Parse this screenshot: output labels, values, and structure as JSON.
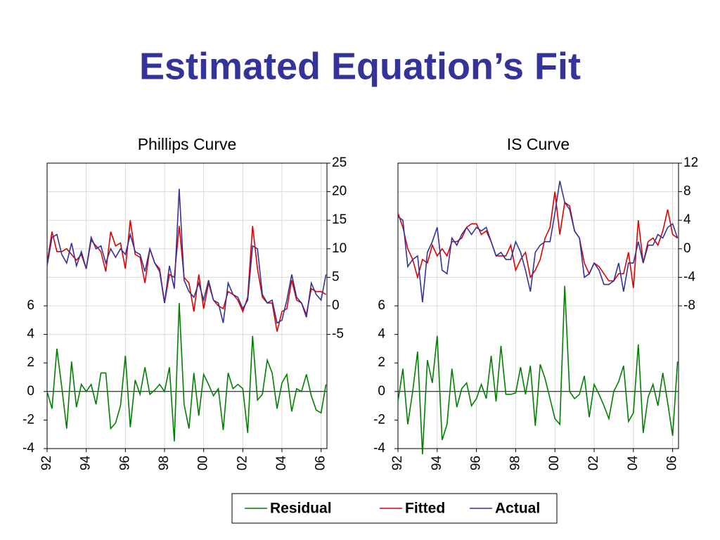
{
  "title": "Estimated Equation’s Fit",
  "chart_data": [
    {
      "type": "line",
      "title": "Phillips Curve",
      "x": [
        1992,
        1992.25,
        1992.5,
        1992.75,
        1993,
        1993.25,
        1993.5,
        1993.75,
        1994,
        1994.25,
        1994.5,
        1994.75,
        1995,
        1995.25,
        1995.5,
        1995.75,
        1996,
        1996.25,
        1996.5,
        1996.75,
        1997,
        1997.25,
        1997.5,
        1997.75,
        1998,
        1998.25,
        1998.5,
        1998.75,
        1999,
        1999.25,
        1999.5,
        1999.75,
        2000,
        2000.25,
        2000.5,
        2000.75,
        2001,
        2001.25,
        2001.5,
        2001.75,
        2002,
        2002.25,
        2002.5,
        2002.75,
        2003,
        2003.25,
        2003.5,
        2003.75,
        2004,
        2004.25,
        2004.5,
        2004.75,
        2005,
        2005.25,
        2005.5,
        2005.75,
        2006,
        2006.25
      ],
      "xlim": [
        1992,
        2006.3
      ],
      "xticks": [
        {
          "value": 1992,
          "label": "92"
        },
        {
          "value": 1994,
          "label": "94"
        },
        {
          "value": 1996,
          "label": "96"
        },
        {
          "value": 1998,
          "label": "98"
        },
        {
          "value": 2000,
          "label": "00"
        },
        {
          "value": 2002,
          "label": "02"
        },
        {
          "value": 2004,
          "label": "04"
        },
        {
          "value": 2006,
          "label": "06"
        }
      ],
      "ylim": [
        -4,
        16
      ],
      "yticks": [
        -4,
        -2,
        0,
        2,
        4,
        6
      ],
      "y2lim": [
        -25,
        25
      ],
      "y2ticks": [
        -5,
        0,
        5,
        10,
        15,
        20,
        25
      ],
      "series": [
        {
          "name": "Residual",
          "color": "#008000",
          "axis": "y",
          "values": [
            0,
            -1.2,
            3,
            0.3,
            -2.6,
            2.1,
            -1.1,
            0.5,
            0,
            0.5,
            -0.9,
            1.3,
            1.3,
            -2.6,
            -2.2,
            -1,
            2.5,
            -2.5,
            0.8,
            -0.2,
            1.7,
            -0.2,
            0.1,
            0.5,
            0,
            1.7,
            -3.5,
            6.2,
            -0.9,
            -2.6,
            1.3,
            -1.7,
            1.2,
            0.5,
            -0.3,
            0.2,
            -2.7,
            1.3,
            0.2,
            0.5,
            0.2,
            -2.9,
            3.9,
            -0.6,
            -0.2,
            2.2,
            1.3,
            -1.2,
            0.6,
            1.2,
            -1.4,
            0.2,
            0,
            1.2,
            -0.3,
            -1.3,
            -1.5,
            0.5
          ]
        },
        {
          "name": "Fitted",
          "color": "#e00000",
          "axis": "y2",
          "values": [
            7.5,
            13,
            9.5,
            9.5,
            10,
            9,
            8,
            9,
            6.5,
            11.5,
            10.5,
            9.5,
            6,
            13,
            10.5,
            11,
            6.5,
            15,
            9,
            8.5,
            4,
            10,
            7.5,
            6.5,
            0.5,
            5.5,
            5,
            14,
            5,
            4,
            -1,
            5.5,
            -0.5,
            4,
            1,
            0,
            -0.5,
            2.5,
            2,
            1,
            -1,
            1.5,
            14,
            6.5,
            1.5,
            0.5,
            0.5,
            -4.5,
            -1,
            -0.5,
            4.5,
            1,
            0.5,
            -1.5,
            3,
            2.5,
            2.5,
            2
          ]
        },
        {
          "name": "Actual",
          "color": "#333399",
          "axis": "y2",
          "values": [
            7,
            12,
            12.5,
            9,
            7.5,
            11,
            7,
            9.5,
            6.5,
            12,
            10,
            10.5,
            7.5,
            10,
            8.5,
            10,
            9,
            12.5,
            9.5,
            9,
            6,
            10,
            7.5,
            6,
            0.5,
            7,
            3,
            20.5,
            4.5,
            2.5,
            1.5,
            4,
            1,
            4.5,
            1,
            0.5,
            -3,
            4,
            2,
            1.5,
            -0.5,
            1,
            10.5,
            10,
            2,
            0.5,
            1,
            -3,
            -2.5,
            1,
            5.5,
            1.5,
            0.5,
            -2,
            4,
            2,
            1,
            5.5
          ]
        }
      ]
    },
    {
      "type": "line",
      "title": "IS Curve",
      "x": [
        1992,
        1992.25,
        1992.5,
        1992.75,
        1993,
        1993.25,
        1993.5,
        1993.75,
        1994,
        1994.25,
        1994.5,
        1994.75,
        1995,
        1995.25,
        1995.5,
        1995.75,
        1996,
        1996.25,
        1996.5,
        1996.75,
        1997,
        1997.25,
        1997.5,
        1997.75,
        1998,
        1998.25,
        1998.5,
        1998.75,
        1999,
        1999.25,
        1999.5,
        1999.75,
        2000,
        2000.25,
        2000.5,
        2000.75,
        2001,
        2001.25,
        2001.5,
        2001.75,
        2002,
        2002.25,
        2002.5,
        2002.75,
        2003,
        2003.25,
        2003.5,
        2003.75,
        2004,
        2004.25,
        2004.5,
        2004.75,
        2005,
        2005.25,
        2005.5,
        2005.75,
        2006,
        2006.25
      ],
      "xlim": [
        1992,
        2006.3
      ],
      "xticks": [
        {
          "value": 1992,
          "label": "92"
        },
        {
          "value": 1994,
          "label": "94"
        },
        {
          "value": 1996,
          "label": "96"
        },
        {
          "value": 1998,
          "label": "98"
        },
        {
          "value": 2000,
          "label": "00"
        },
        {
          "value": 2002,
          "label": "02"
        },
        {
          "value": 2004,
          "label": "04"
        },
        {
          "value": 2006,
          "label": "06"
        }
      ],
      "ylim": [
        -4,
        16
      ],
      "yticks": [
        -4,
        -2,
        0,
        2,
        4,
        6
      ],
      "y2lim": [
        -28,
        12
      ],
      "y2ticks": [
        -8,
        -4,
        0,
        4,
        8,
        12
      ],
      "series": [
        {
          "name": "Residual",
          "color": "#008000",
          "axis": "y",
          "values": [
            -0.7,
            1.6,
            -2.3,
            0,
            2.8,
            -4.4,
            2.2,
            0.6,
            3.9,
            -3.4,
            -2.3,
            1.6,
            -1.1,
            0.2,
            0.6,
            -1,
            -0.5,
            0.5,
            -0.5,
            2.5,
            -0.7,
            3.2,
            -0.2,
            -0.2,
            -0.1,
            1.7,
            -0.2,
            1.8,
            -2.4,
            1.9,
            0.9,
            -0.5,
            -1.9,
            -2.3,
            7.4,
            0,
            -0.5,
            -0.2,
            1.1,
            -1.8,
            0.5,
            -0.2,
            -1,
            -1.9,
            0,
            0.7,
            1.8,
            -2.1,
            -1.5,
            3.3,
            -2.9,
            -0.4,
            0.5,
            -1,
            1.3,
            -0.8,
            -3.1,
            2.1
          ]
        },
        {
          "name": "Fitted",
          "color": "#e00000",
          "axis": "y2",
          "values": [
            5,
            3,
            0,
            -1.5,
            -4,
            -1.5,
            -2,
            0.5,
            -1,
            0,
            -1,
            1,
            1,
            1.5,
            3,
            3.5,
            3.5,
            2,
            2.5,
            1,
            -1,
            -1,
            -1,
            0.5,
            -3,
            -1.5,
            -0.5,
            -4,
            -3,
            -1.5,
            1.5,
            3,
            8,
            2,
            6.5,
            6,
            2.5,
            1.5,
            -2,
            -3.5,
            -2,
            -2.5,
            -3.5,
            -4.5,
            -4.5,
            -3.5,
            -3.5,
            -0.5,
            -5.5,
            4,
            -2,
            1,
            1.5,
            0.5,
            2.5,
            5.5,
            2,
            1.5
          ]
        },
        {
          "name": "Actual",
          "color": "#333399",
          "axis": "y2",
          "values": [
            4.5,
            4,
            -2.5,
            -1.5,
            -1,
            -7.5,
            -0.5,
            1,
            3,
            -3,
            -3.5,
            1.5,
            0.5,
            2,
            3,
            2,
            3,
            2.5,
            3,
            1,
            -1,
            -0.5,
            -1.5,
            -1.5,
            1,
            -0.5,
            -3,
            -6,
            -0.5,
            0.5,
            1,
            1,
            5,
            9.5,
            6.5,
            5.5,
            2.5,
            1.5,
            -4,
            -3.5,
            -2,
            -3,
            -5,
            -5,
            -4.5,
            -2,
            -6,
            -2,
            -2,
            1,
            -2,
            0.5,
            0.5,
            2,
            1.5,
            3,
            3.5,
            1.5
          ]
        }
      ]
    }
  ]
}
